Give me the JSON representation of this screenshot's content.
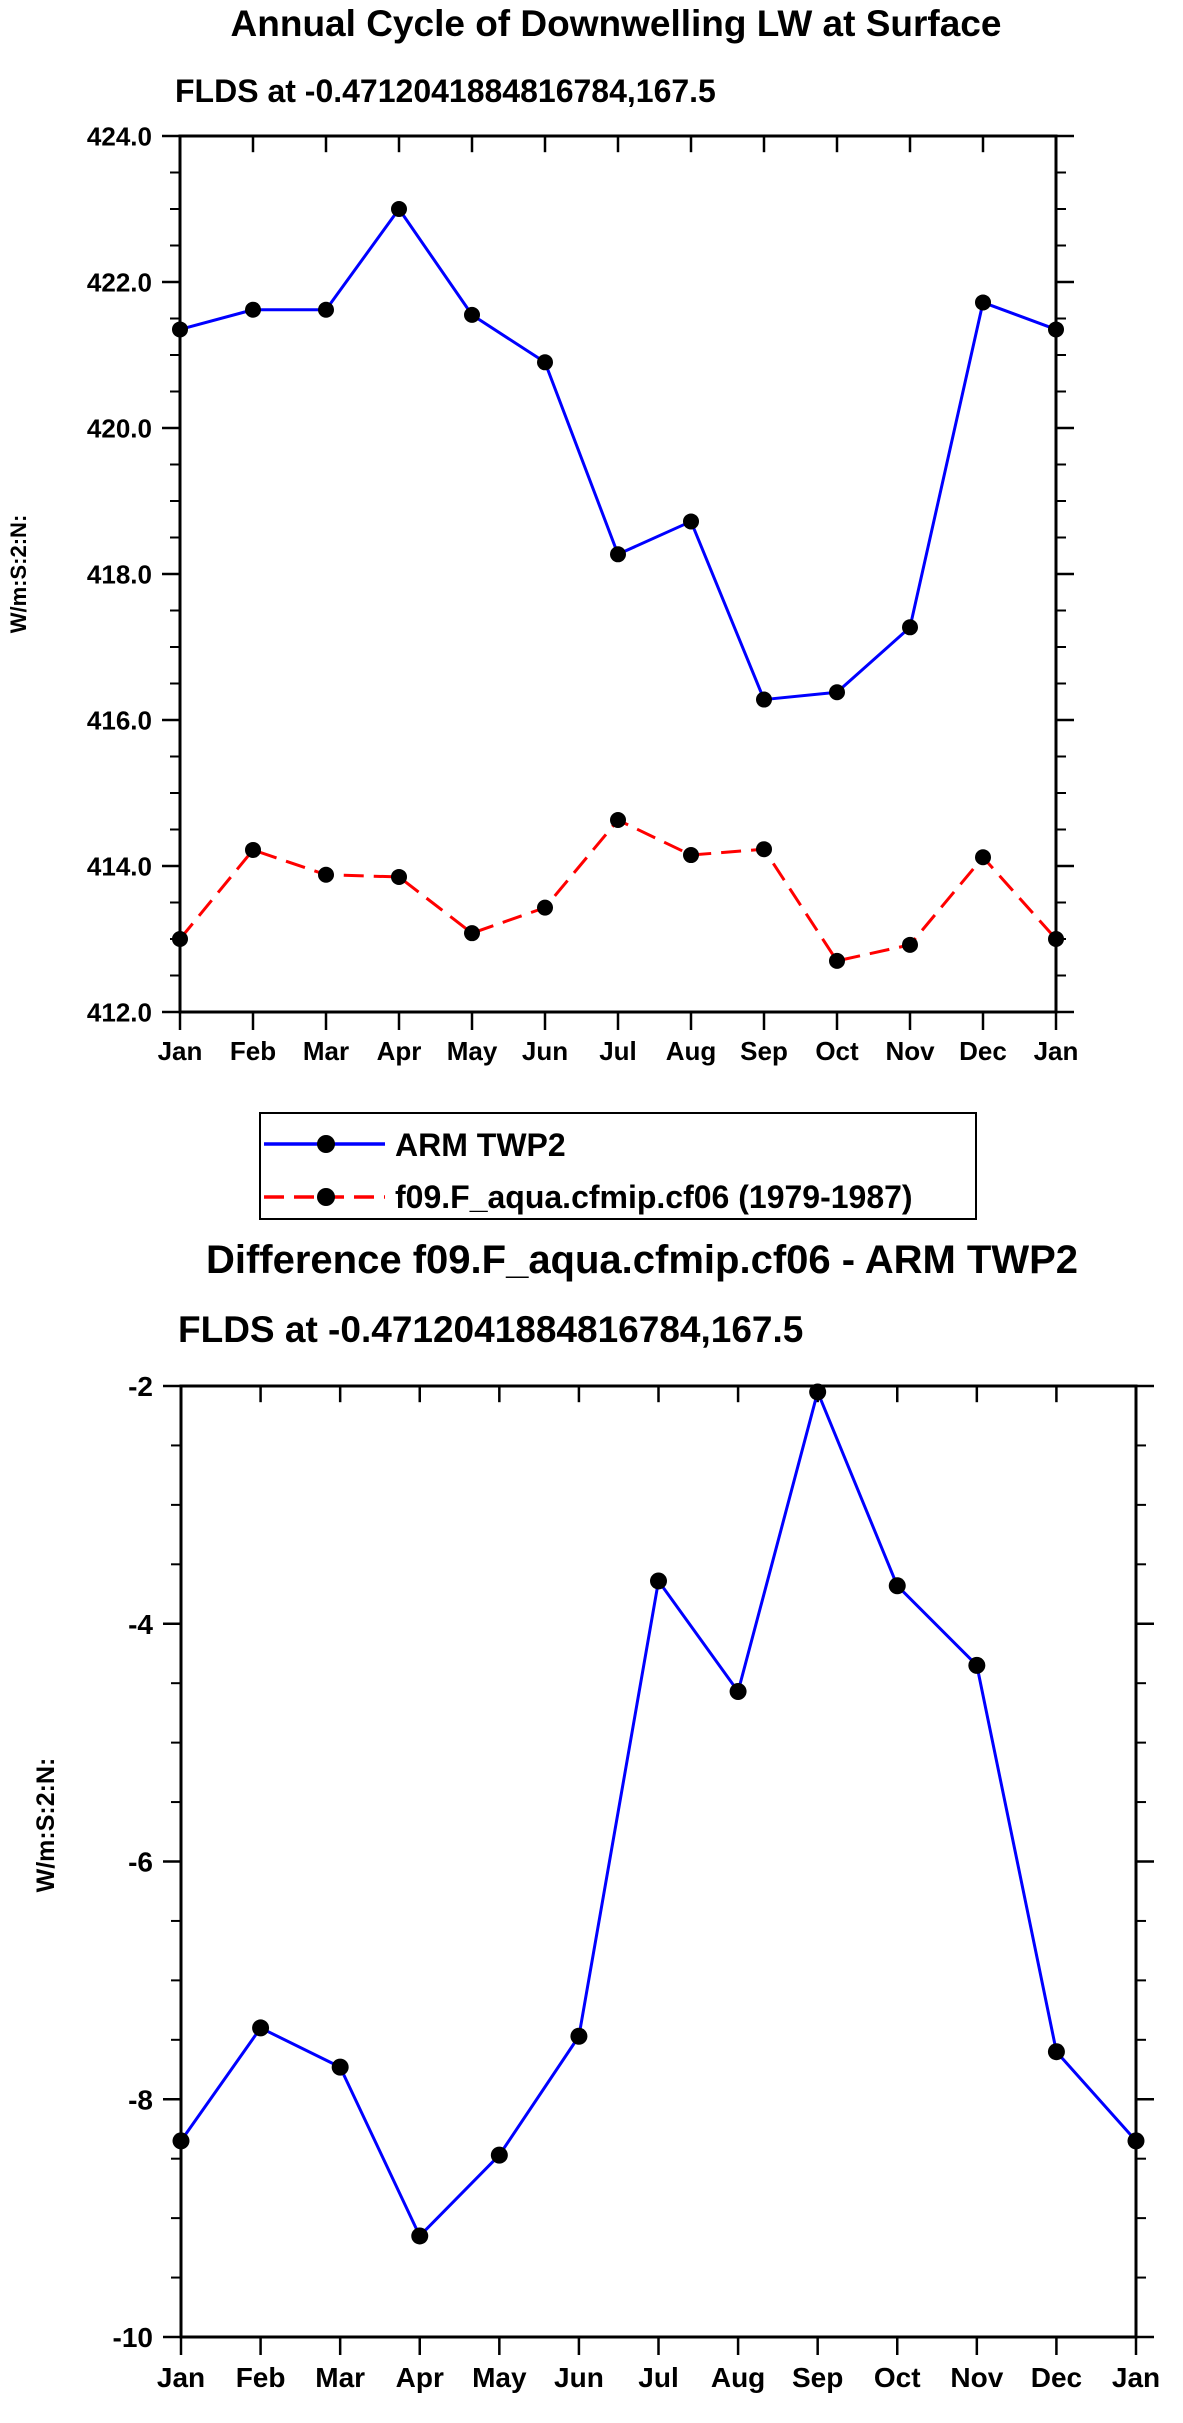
{
  "chart_data": [
    {
      "type": "line",
      "title": "Annual Cycle of Downwelling LW at Surface",
      "subtitle": "FLDS at -0.4712041884816784,167.5",
      "ylabel": "W/m:S:2:N:",
      "xlabel": "",
      "categories": [
        "Jan",
        "Feb",
        "Mar",
        "Apr",
        "May",
        "Jun",
        "Jul",
        "Aug",
        "Sep",
        "Oct",
        "Nov",
        "Dec",
        "Jan"
      ],
      "ylim": [
        412.0,
        424.0
      ],
      "yticks": [
        412.0,
        414.0,
        416.0,
        418.0,
        420.0,
        422.0,
        424.0
      ],
      "ytick_labels": [
        "412.0",
        "414.0",
        "416.0",
        "418.0",
        "420.0",
        "422.0",
        "424.0"
      ],
      "series": [
        {
          "name": "ARM TWP2",
          "color": "#0000ff",
          "dash": "solid",
          "values": [
            421.35,
            421.62,
            421.62,
            423.0,
            421.55,
            420.9,
            418.27,
            418.72,
            416.28,
            416.38,
            417.27,
            421.72,
            421.35
          ]
        },
        {
          "name": "f09.F_aqua.cfmip.cf06 (1979-1987)",
          "color": "#ff0000",
          "dash": "dashed",
          "values": [
            413.0,
            414.22,
            413.88,
            413.85,
            413.08,
            413.43,
            414.63,
            414.15,
            414.23,
            412.7,
            412.92,
            414.12,
            413.0
          ]
        }
      ],
      "legend_position": "below"
    },
    {
      "type": "line",
      "title": "Difference f09.F_aqua.cfmip.cf06 - ARM TWP2",
      "subtitle": "FLDS at -0.4712041884816784,167.5",
      "ylabel": "W/m:S:2:N:",
      "xlabel": "",
      "categories": [
        "Jan",
        "Feb",
        "Mar",
        "Apr",
        "May",
        "Jun",
        "Jul",
        "Aug",
        "Sep",
        "Oct",
        "Nov",
        "Dec",
        "Jan"
      ],
      "ylim": [
        -10,
        -2
      ],
      "yticks": [
        -10,
        -8,
        -6,
        -4,
        -2
      ],
      "ytick_labels": [
        "-10",
        "-8",
        "-6",
        "-4",
        "-2"
      ],
      "series": [
        {
          "name": "Difference",
          "color": "#0000ff",
          "dash": "solid",
          "values": [
            -8.35,
            -7.4,
            -7.73,
            -9.15,
            -8.47,
            -7.47,
            -3.64,
            -4.57,
            -2.05,
            -3.68,
            -4.35,
            -7.6,
            -8.35
          ]
        }
      ]
    }
  ]
}
